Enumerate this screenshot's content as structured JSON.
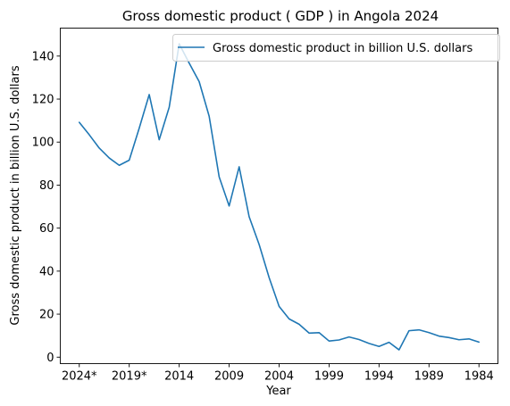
{
  "chart_data": {
    "type": "line",
    "title": "Gross domestic product ( GDP ) in Angola 2024",
    "xlabel": "Year",
    "ylabel": "Gross domestic product in billion U.S. dollars",
    "legend": {
      "placement": "top-right",
      "entries": [
        "Gross domestic product in billion U.S. dollars"
      ]
    },
    "grid": false,
    "xlim": [
      2025.9,
      1982.1
    ],
    "ylim": [
      -3,
      153
    ],
    "x_ticks": [
      {
        "value": 2024,
        "label": "2024*"
      },
      {
        "value": 2019,
        "label": "2019*"
      },
      {
        "value": 2014,
        "label": "2014"
      },
      {
        "value": 2009,
        "label": "2009"
      },
      {
        "value": 2004,
        "label": "2004"
      },
      {
        "value": 1999,
        "label": "1999"
      },
      {
        "value": 1994,
        "label": "1994"
      },
      {
        "value": 1989,
        "label": "1989"
      },
      {
        "value": 1984,
        "label": "1984"
      }
    ],
    "y_ticks": [
      0,
      20,
      40,
      60,
      80,
      100,
      120,
      140
    ],
    "series": [
      {
        "name": "Gross domestic product in billion U.S. dollars",
        "color": "#1f77b4",
        "x": [
          2024,
          2023,
          2022,
          2021,
          2020,
          2019,
          2018,
          2017,
          2016,
          2015,
          2014,
          2013,
          2012,
          2011,
          2010,
          2009,
          2008,
          2007,
          2006,
          2005,
          2004,
          2003,
          2002,
          2001,
          2000,
          1999,
          1998,
          1997,
          1996,
          1995,
          1994,
          1993,
          1992,
          1991,
          1990,
          1989,
          1988,
          1987,
          1986,
          1985,
          1984
        ],
        "values": [
          109.2,
          103.4,
          97.2,
          92.6,
          89.2,
          91.6,
          106.5,
          122.1,
          101.1,
          116.2,
          145.7,
          136.7,
          128.1,
          112.0,
          83.8,
          70.3,
          88.5,
          65.3,
          52.4,
          37.0,
          23.6,
          17.8,
          15.3,
          11.2,
          11.4,
          7.5,
          8.0,
          9.4,
          8.2,
          6.4,
          5.0,
          6.9,
          3.4,
          12.3,
          12.7,
          11.4,
          9.8,
          9.1,
          8.1,
          8.5,
          7.0
        ]
      }
    ]
  }
}
